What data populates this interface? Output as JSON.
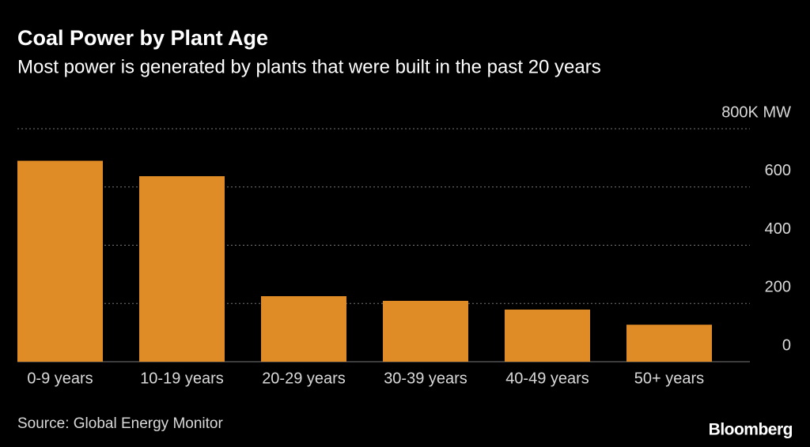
{
  "chart_data": {
    "type": "bar",
    "title": "Coal Power by Plant Age",
    "subtitle": "Most power is generated by plants that were built in the past 20 years",
    "categories": [
      "0-9 years",
      "10-19 years",
      "20-29 years",
      "30-39 years",
      "40-49 years",
      "50+ years"
    ],
    "values": [
      690,
      637,
      225,
      209,
      179,
      127
    ],
    "color": "#e08c26",
    "ylim": [
      0,
      800
    ],
    "yticks": [
      0,
      200,
      400,
      600,
      {
        "value": 800,
        "label": "800K MW"
      }
    ],
    "grid": true,
    "source": "Source: Global Energy Monitor",
    "brand": "Bloomberg"
  }
}
